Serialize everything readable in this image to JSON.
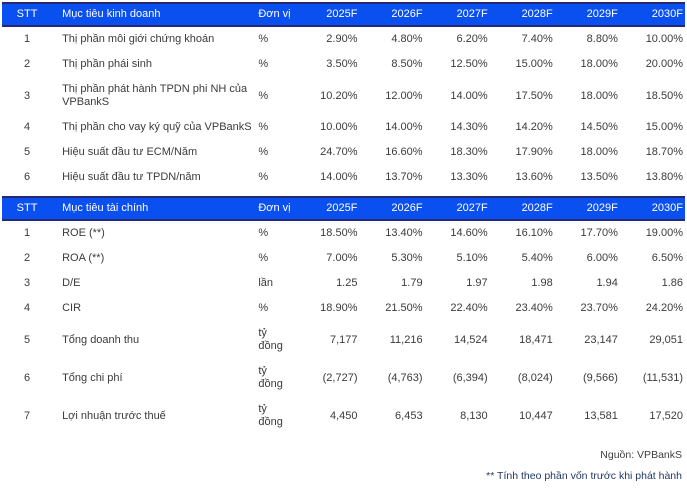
{
  "colors": {
    "header_bg": "#0a4ff0",
    "header_text": "#ffffff",
    "border_navy": "#252a70",
    "body_text": "#3b3b3b",
    "note_text": "#203864",
    "source_text": "#404040"
  },
  "columns": {
    "stt": "STT",
    "unit": "Đơn vị",
    "years": [
      "2025F",
      "2026F",
      "2027F",
      "2028F",
      "2029F",
      "2030F"
    ]
  },
  "tables": [
    {
      "title": "Mục tiêu kinh doanh",
      "rows": [
        {
          "stt": "1",
          "name": "Thị phần môi giới chứng khoán",
          "unit": "%",
          "values": [
            "2.90%",
            "4.80%",
            "6.20%",
            "7.40%",
            "8.80%",
            "10.00%"
          ]
        },
        {
          "stt": "2",
          "name": "Thị phần phái sinh",
          "unit": "%",
          "values": [
            "3.50%",
            "8.50%",
            "12.50%",
            "15.00%",
            "18.00%",
            "20.00%"
          ]
        },
        {
          "stt": "3",
          "name": "Thị phần phát hành TPDN phi NH của VPBankS",
          "unit": "%",
          "values": [
            "10.20%",
            "12.00%",
            "14.00%",
            "17.50%",
            "18.00%",
            "18.50%"
          ]
        },
        {
          "stt": "4",
          "name": "Thị phần cho vay ký quỹ của VPBankS",
          "unit": "%",
          "values": [
            "10.00%",
            "14.00%",
            "14.30%",
            "14.20%",
            "14.50%",
            "15.00%"
          ]
        },
        {
          "stt": "5",
          "name": "Hiệu suất đầu tư ECM/Năm",
          "unit": "%",
          "values": [
            "24.70%",
            "16.60%",
            "18.30%",
            "17.90%",
            "18.00%",
            "18.70%"
          ]
        },
        {
          "stt": "6",
          "name": "Hiệu suất đầu tư TPDN/năm",
          "unit": "%",
          "values": [
            "14.00%",
            "13.70%",
            "13.30%",
            "13.60%",
            "13.50%",
            "13.80%"
          ]
        }
      ]
    },
    {
      "title": "Mục tiêu tài chính",
      "rows": [
        {
          "stt": "1",
          "name": "ROE (**)",
          "unit": "%",
          "values": [
            "18.50%",
            "13.40%",
            "14.60%",
            "16.10%",
            "17.70%",
            "19.00%"
          ]
        },
        {
          "stt": "2",
          "name": "ROA (**)",
          "unit": "%",
          "values": [
            "7.00%",
            "5.30%",
            "5.10%",
            "5.40%",
            "6.00%",
            "6.50%"
          ]
        },
        {
          "stt": "3",
          "name": "D/E",
          "unit": "lần",
          "values": [
            "1.25",
            "1.79",
            "1.97",
            "1.98",
            "1.94",
            "1.86"
          ]
        },
        {
          "stt": "4",
          "name": "CIR",
          "unit": "%",
          "values": [
            "18.90%",
            "21.50%",
            "22.40%",
            "23.40%",
            "23.70%",
            "24.20%"
          ]
        },
        {
          "stt": "5",
          "name": "Tổng doanh thu",
          "unit": "tỷ đồng",
          "values": [
            "7,177",
            "11,216",
            "14,524",
            "18,471",
            "23,147",
            "29,051"
          ]
        },
        {
          "stt": "6",
          "name": "Tổng chi phí",
          "unit": "tỷ đồng",
          "values": [
            "(2,727)",
            "(4,763)",
            "(6,394)",
            "(8,024)",
            "(9,566)",
            "(11,531)"
          ]
        },
        {
          "stt": "7",
          "name": "Lợi nhuận trước thuế",
          "unit": "tỷ đồng",
          "values": [
            "4,450",
            "6,453",
            "8,130",
            "10,447",
            "13,581",
            "17,520"
          ]
        }
      ]
    }
  ],
  "footer": {
    "source": "Nguồn: VPBankS",
    "note": "** Tính theo phần vốn trước khi phát hành"
  }
}
